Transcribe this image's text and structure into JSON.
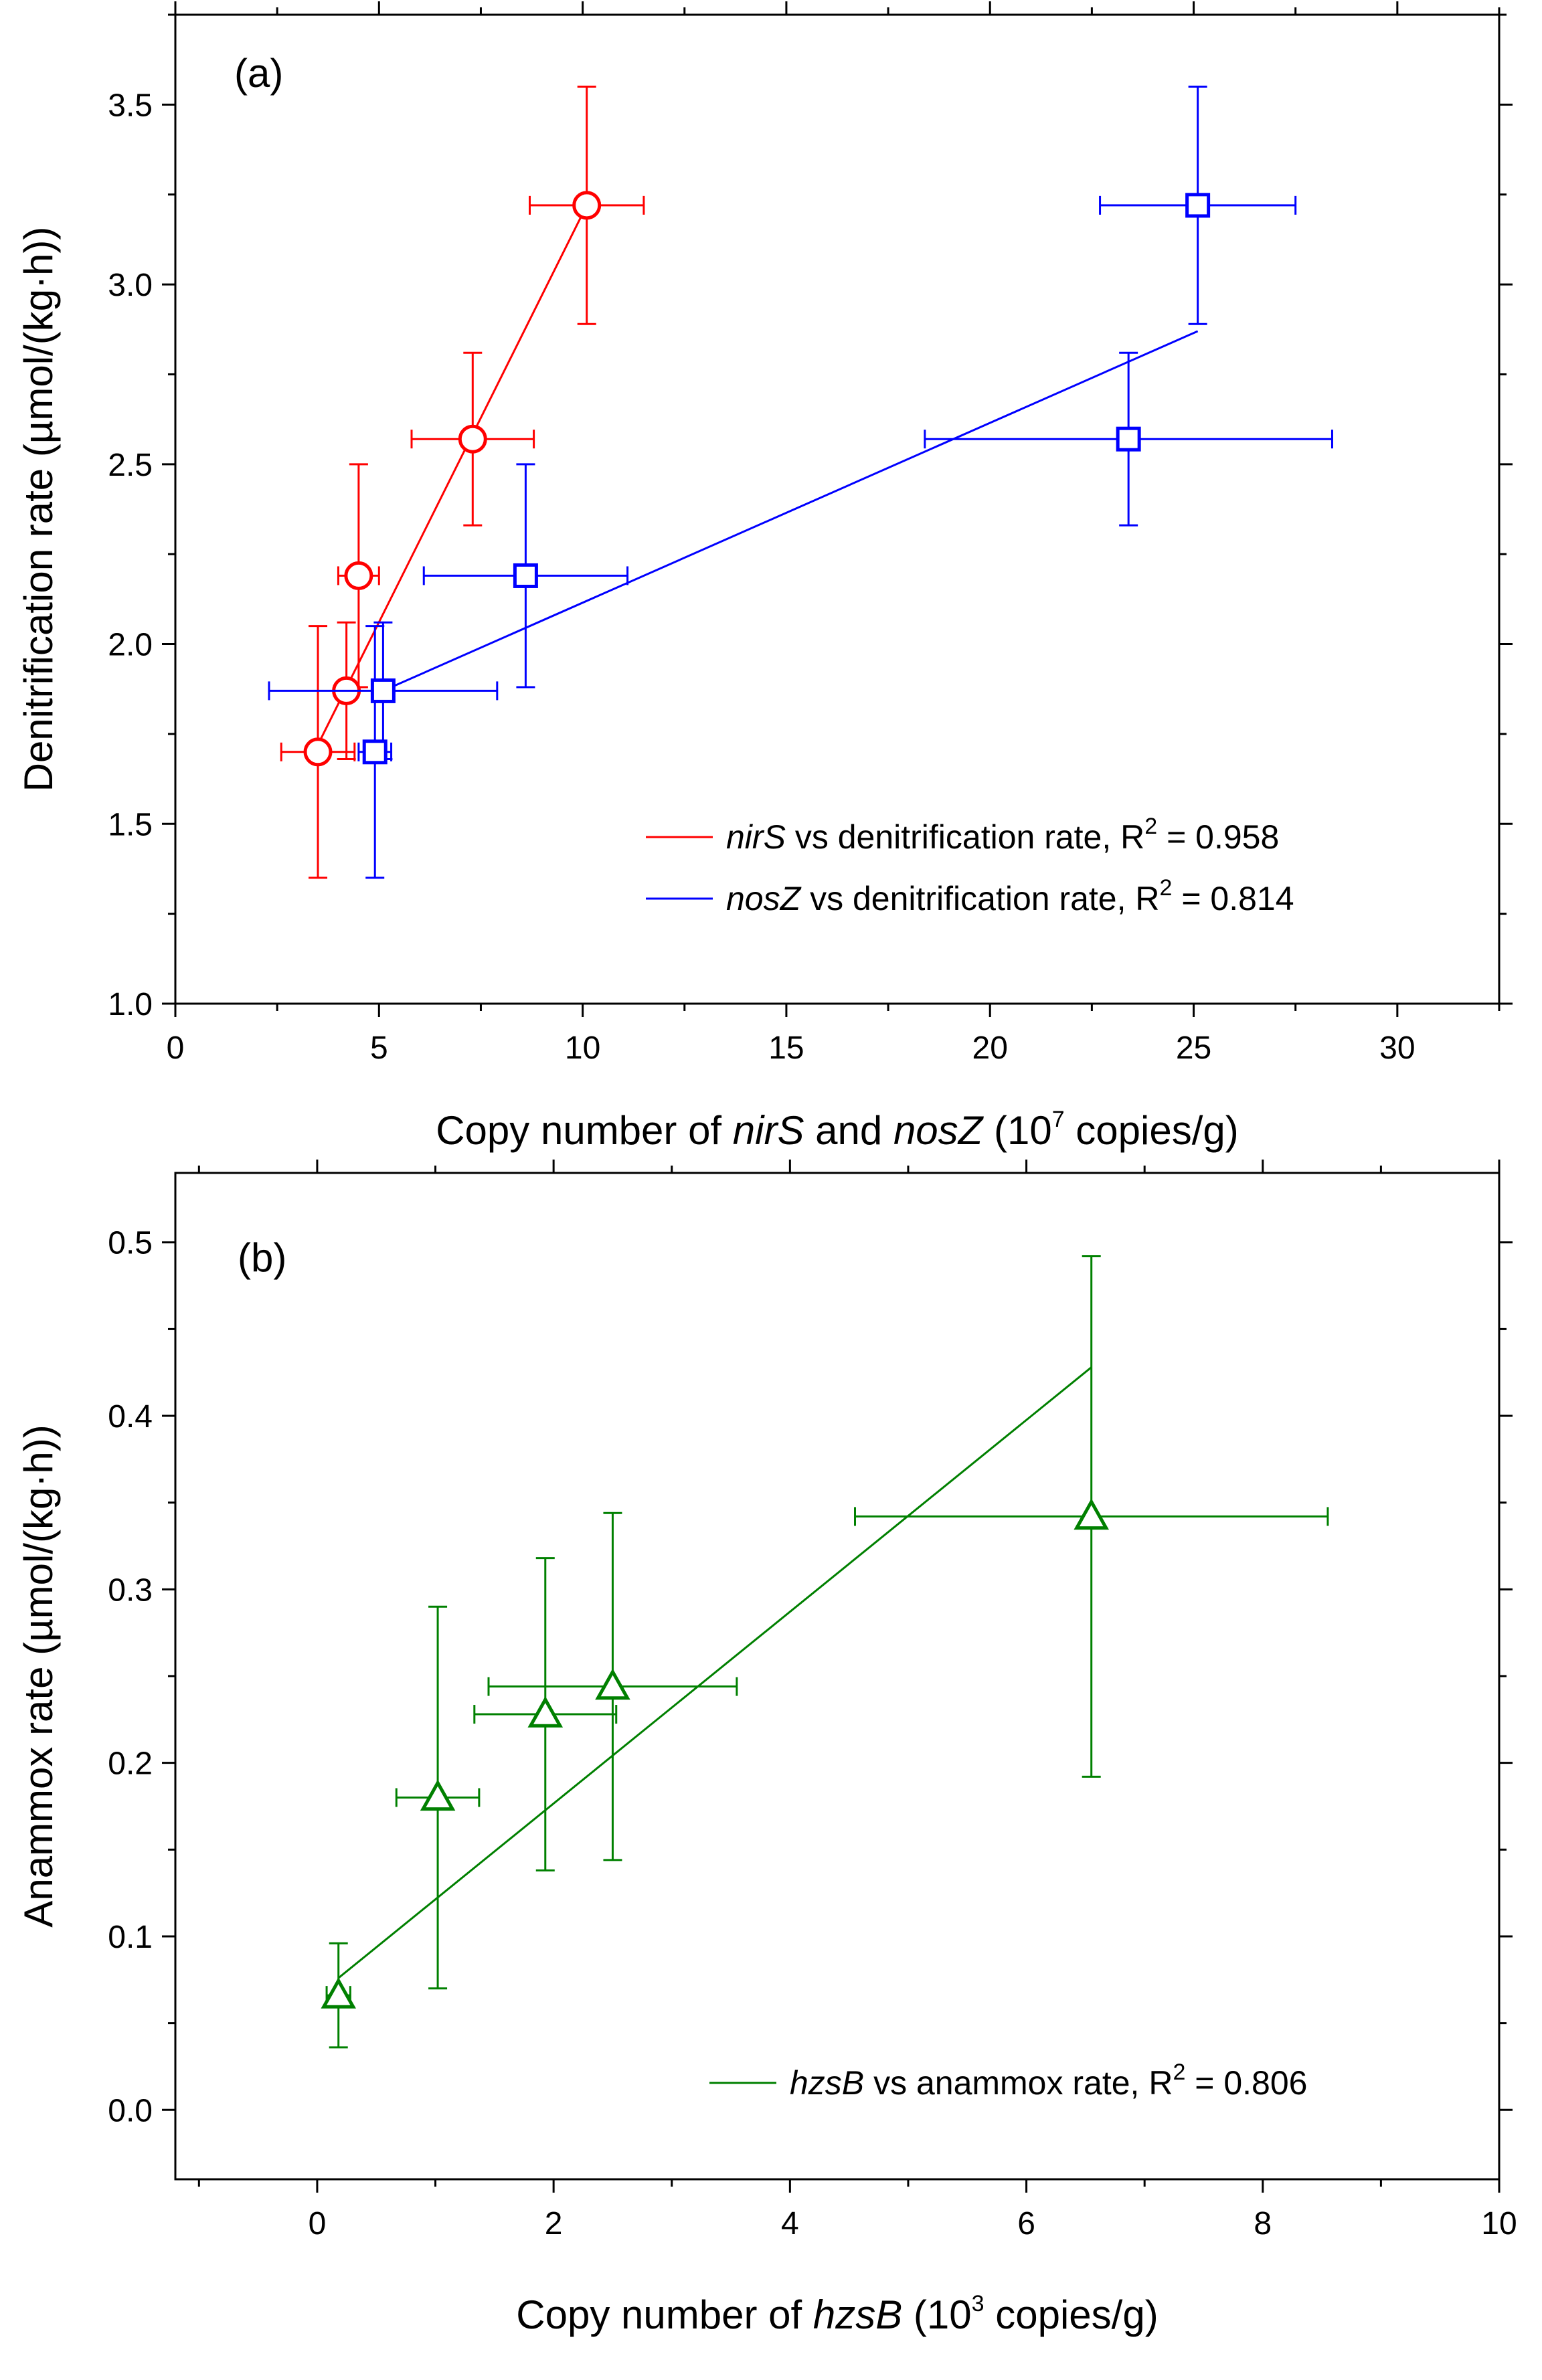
{
  "figure": {
    "panels": [
      "(a)",
      "(b)"
    ]
  },
  "chart_data": [
    {
      "type": "scatter",
      "panel_label": "(a)",
      "ylabel": "Denitrification rate (µmol/(kg·h))",
      "xlabel_parts": {
        "pre": "Copy number of ",
        "g1": "nirS",
        "mid": " and ",
        "g2": "nosZ",
        "post": " (10",
        "sup": "7",
        "end": " copies/g)"
      },
      "xlim": [
        0,
        32.5
      ],
      "ylim": [
        1.0,
        3.75
      ],
      "xticks": [
        0,
        5,
        10,
        15,
        20,
        25,
        30
      ],
      "xtick_labels": [
        "0",
        "5",
        "10",
        "15",
        "20",
        "25",
        "30"
      ],
      "yticks": [
        1.0,
        1.5,
        2.0,
        2.5,
        3.0,
        3.5
      ],
      "ytick_labels": [
        "1.0",
        "1.5",
        "2.0",
        "2.5",
        "3.0",
        "3.5"
      ],
      "series": [
        {
          "name": "nirS",
          "color": "#ff0000",
          "marker": "circle",
          "x": [
            3.5,
            4.2,
            4.5,
            7.3,
            10.1
          ],
          "y": [
            1.7,
            1.87,
            2.19,
            2.57,
            3.22
          ],
          "xerr": [
            0.9,
            0.0,
            0.5,
            1.5,
            1.4
          ],
          "yerr": [
            0.35,
            0.19,
            0.31,
            0.24,
            0.33
          ],
          "fit": {
            "x": [
              3.5,
              10.1
            ],
            "y": [
              1.72,
              3.22
            ]
          },
          "legend": {
            "gene": "nirS",
            "text": " vs denitrification rate, R",
            "sup": "2",
            "value": " = 0.958"
          }
        },
        {
          "name": "nosZ",
          "color": "#0000ff",
          "marker": "square",
          "x": [
            4.9,
            5.1,
            8.6,
            23.4,
            25.1
          ],
          "y": [
            1.7,
            1.87,
            2.19,
            2.57,
            3.22
          ],
          "xerr": [
            0.4,
            2.8,
            2.5,
            5.0,
            2.4
          ],
          "yerr": [
            0.35,
            0.19,
            0.31,
            0.24,
            0.33
          ],
          "fit": {
            "x": [
              4.9,
              25.1
            ],
            "y": [
              1.86,
              2.87
            ]
          },
          "legend": {
            "gene": "nosZ",
            "text": " vs denitrification rate, R",
            "sup": "2",
            "value": " = 0.814"
          }
        }
      ]
    },
    {
      "type": "scatter",
      "panel_label": "(b)",
      "ylabel": "Anammox rate (µmol/(kg·h))",
      "xlabel_parts": {
        "pre": "Copy number of ",
        "g1": "hzsB",
        "post": " (10",
        "sup": "3",
        "end": " copies/g)"
      },
      "xlim": [
        -1.2,
        10
      ],
      "ylim": [
        -0.04,
        0.54
      ],
      "xticks": [
        0,
        2,
        4,
        6,
        8,
        10
      ],
      "xtick_labels": [
        "0",
        "2",
        "4",
        "6",
        "8",
        "10"
      ],
      "yticks": [
        0.0,
        0.1,
        0.2,
        0.3,
        0.4,
        0.5
      ],
      "ytick_labels": [
        "0.0",
        "0.1",
        "0.2",
        "0.3",
        "0.4",
        "0.5"
      ],
      "series": [
        {
          "name": "hzsB",
          "color": "#008000",
          "marker": "triangle",
          "x": [
            0.18,
            1.02,
            1.93,
            2.5,
            6.55
          ],
          "y": [
            0.066,
            0.18,
            0.228,
            0.244,
            0.342
          ],
          "xerr": [
            0.1,
            0.35,
            0.6,
            1.05,
            2.0
          ],
          "yerr": [
            0.03,
            0.11,
            0.09,
            0.1,
            0.15
          ],
          "fit": {
            "x": [
              0.18,
              6.55
            ],
            "y": [
              0.076,
              0.428
            ]
          },
          "legend": {
            "gene": "hzsB",
            "text": " vs anammox rate, R",
            "sup": "2",
            "value": " = 0.806"
          }
        }
      ]
    }
  ]
}
